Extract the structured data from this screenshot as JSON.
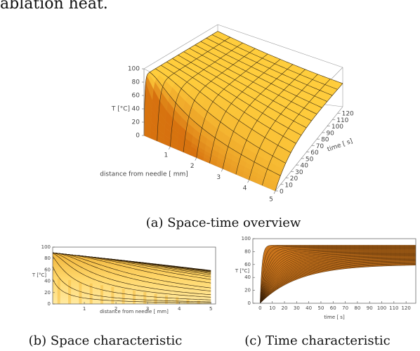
{
  "body_text": "ablation heat.",
  "figures": [
    {
      "caption": "(a) Space-time overview",
      "z_label": "T  [°C]",
      "x_label": "distance  from  needle [ mm]",
      "y_label": "time [ s]",
      "xlim": [
        0,
        5
      ],
      "ylim": [
        0,
        130
      ],
      "zlim": [
        0,
        100
      ],
      "xticks": [
        1,
        2,
        3,
        4,
        5
      ],
      "yticks": [
        0,
        10,
        20,
        30,
        40,
        50,
        60,
        70,
        80,
        90,
        100,
        110,
        120
      ],
      "zticks": [
        0,
        20,
        40,
        60,
        80,
        100
      ]
    },
    {
      "caption": "(b) Space characteristic",
      "x_label": "distance  from  needle [ mm]",
      "y_label": "T  [°C]",
      "xlim": [
        0,
        5.15
      ],
      "ylim": [
        0,
        100
      ],
      "xticks": [
        1,
        2,
        3,
        4,
        5
      ],
      "yticks": [
        0,
        20,
        40,
        60,
        80,
        100
      ]
    },
    {
      "caption": "(c) Time characteristic",
      "x_label": "time [ s]",
      "y_label": "T  [°C]",
      "xlim": [
        -6,
        128
      ],
      "ylim": [
        0,
        100
      ],
      "xticks": [
        0,
        10,
        20,
        30,
        40,
        50,
        60,
        70,
        80,
        90,
        100,
        110,
        120
      ],
      "yticks": [
        0,
        20,
        40,
        60,
        80,
        100
      ]
    }
  ]
}
